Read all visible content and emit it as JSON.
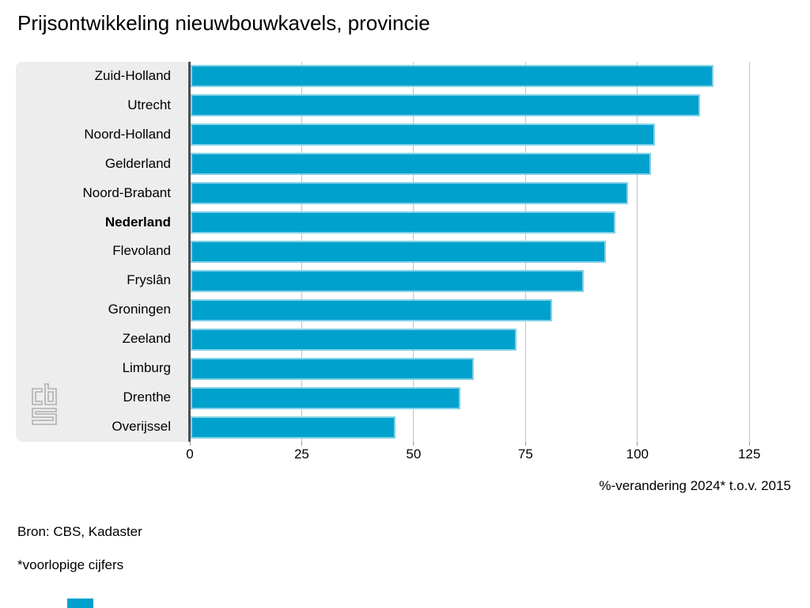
{
  "title": "Prijsontwikkeling nieuwbouwkavels, provincie",
  "chart_data": {
    "type": "bar",
    "orientation": "horizontal",
    "title": "Prijsontwikkeling nieuwbouwkavels, provincie",
    "categories": [
      "Zuid-Holland",
      "Utrecht",
      "Noord-Holland",
      "Gelderland",
      "Noord-Brabant",
      "Nederland",
      "Flevoland",
      "Fryslân",
      "Groningen",
      "Zeeland",
      "Limburg",
      "Drenthe",
      "Overijssel"
    ],
    "values": [
      117,
      114,
      104,
      103,
      98,
      95,
      93,
      88,
      81,
      73,
      63.5,
      60.5,
      46
    ],
    "emphasized_category": "Nederland",
    "xlabel": "%-verandering 2024* t.o.v. 2015",
    "x_ticks": [
      0,
      25,
      50,
      75,
      100,
      125
    ],
    "xlim": [
      0,
      135
    ],
    "grid": true,
    "legend": false
  },
  "footer": {
    "source": "Bron: CBS, Kadaster",
    "footnote": "*voorlopige cijfers"
  },
  "icons": {
    "cbs_logo": "cbs-logo"
  },
  "colors": {
    "bar": "#00a1cd",
    "bar_border": "#82d2e8",
    "panel_background": "#ededed",
    "axis_line": "#4d4d4d",
    "gridline": "#c4c4c4",
    "logo_gray": "#b0b0b0",
    "brand_square": "#00a1cd"
  }
}
